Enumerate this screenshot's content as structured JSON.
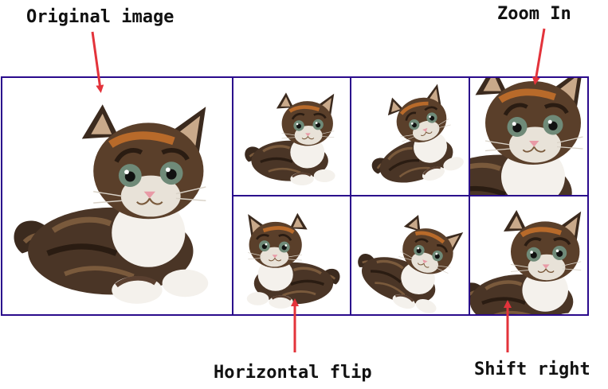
{
  "labels": {
    "original": "Original image",
    "zoom_in": "Zoom In",
    "horizontal_flip": "Horizontal flip",
    "shift_right": "Shift right"
  },
  "colors": {
    "frame": "#2a0a8c",
    "arrow": "#e3333b",
    "fur_dark": "#3b2a1e",
    "fur_mid": "#7a5a3c",
    "fur_orange": "#b86a2a",
    "fur_light": "#f4f1ec",
    "eye": "#6f8a78",
    "nose": "#e89aa6"
  },
  "tiles": [
    {
      "name": "original",
      "variant": "original"
    },
    {
      "name": "sample-top-1",
      "variant": "small-crouch"
    },
    {
      "name": "sample-top-2",
      "variant": "rotated-left"
    },
    {
      "name": "sample-top-3",
      "variant": "zoom-in"
    },
    {
      "name": "sample-bottom-1",
      "variant": "horizontal-flip"
    },
    {
      "name": "sample-bottom-2",
      "variant": "rotated-right"
    },
    {
      "name": "sample-bottom-3",
      "variant": "shift-right"
    }
  ]
}
